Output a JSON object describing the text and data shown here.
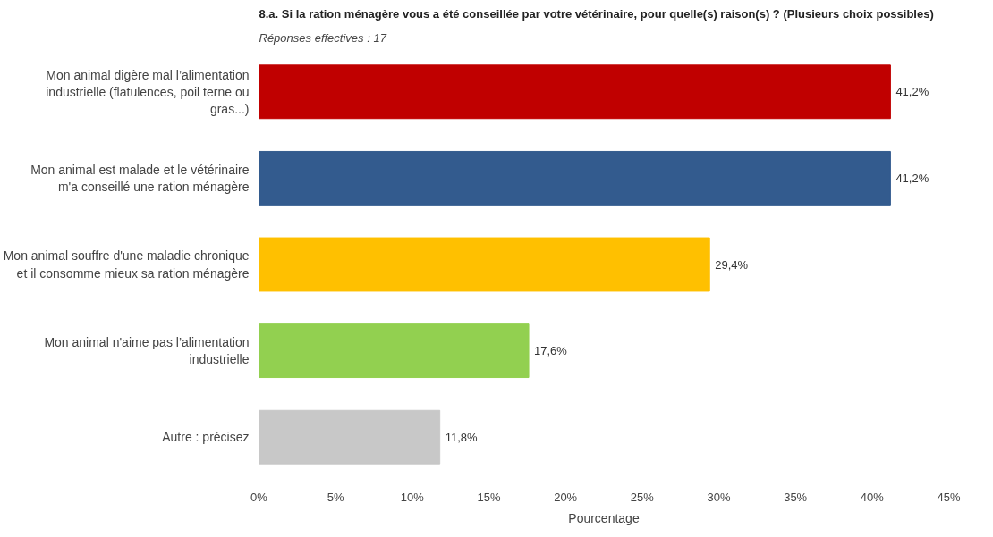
{
  "chart_data": {
    "type": "bar",
    "orientation": "horizontal",
    "title": "8.a. Si la ration ménagère vous a été conseillée par votre vétérinaire, pour quelle(s) raison(s) ? (Plusieurs choix possibles)",
    "subtitle": "Réponses effectives : 17",
    "xlabel": "Pourcentage",
    "categories": [
      "Mon animal digère mal l’alimentation industrielle (flatulences, poil terne ou gras...)",
      "Mon animal est malade et le vétérinaire m'a conseillé une ration ménagère",
      "Mon animal souffre d'une maladie chronique et il consomme mieux sa ration ménagère",
      "Mon animal n'aime pas l’alimentation industrielle",
      "Autre : précisez"
    ],
    "values": [
      41.2,
      41.2,
      29.4,
      17.6,
      11.8
    ],
    "colors": [
      "#c00000",
      "#335b8e",
      "#ffc000",
      "#92d050",
      "#c8c8c8"
    ],
    "value_labels": [
      "41,2%",
      "41,2%",
      "29,4%",
      "17,6%",
      "11,8%"
    ],
    "xlim": [
      0,
      45
    ],
    "xticks": [
      {
        "value": 0,
        "label": "0%"
      },
      {
        "value": 5,
        "label": "5%"
      },
      {
        "value": 10,
        "label": "10%"
      },
      {
        "value": 15,
        "label": "15%"
      },
      {
        "value": 20,
        "label": "20%"
      },
      {
        "value": 25,
        "label": "25%"
      },
      {
        "value": 30,
        "label": "30%"
      },
      {
        "value": 35,
        "label": "35%"
      },
      {
        "value": 40,
        "label": "40%"
      },
      {
        "value": 45,
        "label": "45%"
      }
    ],
    "grid": false
  }
}
